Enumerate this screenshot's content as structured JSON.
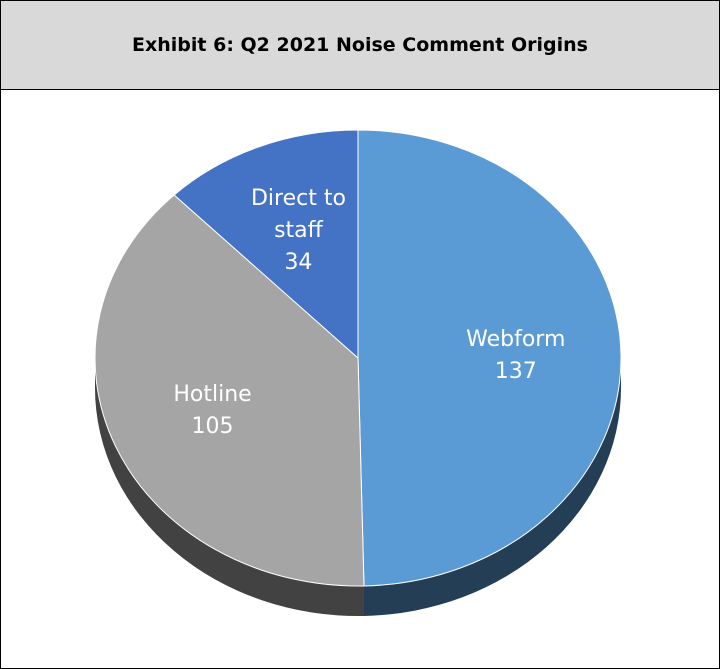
{
  "chart_data": {
    "type": "pie",
    "title": "Exhibit 6: Q2 2021 Noise Comment Origins",
    "categories": [
      "Webform",
      "Hotline",
      "Direct to staff"
    ],
    "values": [
      137,
      105,
      34
    ],
    "colors": [
      "#5b9bd5",
      "#a5a5a5",
      "#4472c4"
    ]
  }
}
